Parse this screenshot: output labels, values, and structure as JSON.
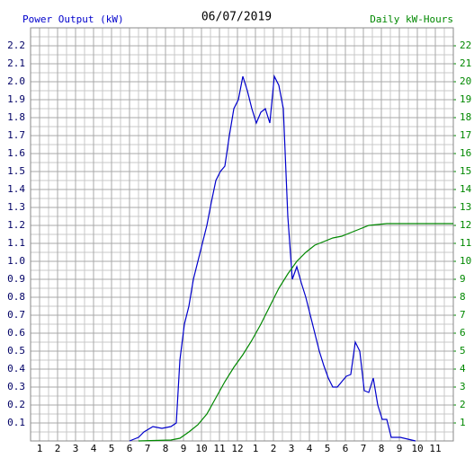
{
  "chart_data": {
    "type": "line",
    "title": "06/07/2019",
    "ylabel": "Power Output (kW)",
    "y2label": "Daily kW-Hours",
    "xlim": [
      0.5,
      24
    ],
    "xticks": [
      1,
      2,
      3,
      4,
      5,
      6,
      7,
      8,
      9,
      10,
      11,
      12,
      {
        "value": 13,
        "label": "1"
      },
      {
        "value": 14,
        "label": "2"
      },
      {
        "value": 15,
        "label": "3"
      },
      {
        "value": 16,
        "label": "4"
      },
      {
        "value": 17,
        "label": "5"
      },
      {
        "value": 18,
        "label": "6"
      },
      {
        "value": 19,
        "label": "7"
      },
      {
        "value": 20,
        "label": "8"
      },
      {
        "value": 21,
        "label": "9"
      },
      {
        "value": 22,
        "label": "10"
      },
      {
        "value": 23,
        "label": "11"
      }
    ],
    "ylim": [
      0,
      2.3
    ],
    "yticks": [
      0.1,
      0.2,
      0.3,
      0.4,
      0.5,
      0.6,
      0.7,
      0.8,
      0.9,
      {
        "value": 1,
        "label": "1.0"
      },
      1.1,
      1.2,
      1.3,
      1.4,
      1.5,
      1.6,
      1.7,
      1.8,
      1.9,
      {
        "value": 2,
        "label": "2.0"
      },
      2.1,
      2.2
    ],
    "y2lim": [
      0,
      23
    ],
    "y2ticks": [
      1,
      2,
      3,
      4,
      5,
      6,
      7,
      8,
      9,
      10,
      11,
      12,
      13,
      14,
      15,
      16,
      17,
      18,
      19,
      20,
      21,
      22
    ],
    "grid": true,
    "series": [
      {
        "name": "Power Output (kW)",
        "color": "#0000cc",
        "x": [
          6.0,
          6.5,
          6.8,
          7.3,
          7.8,
          8.3,
          8.6,
          8.8,
          9.05,
          9.3,
          9.55,
          9.8,
          10.05,
          10.3,
          10.55,
          10.8,
          11.05,
          11.3,
          11.55,
          11.8,
          12.05,
          12.3,
          12.55,
          12.8,
          13.05,
          13.3,
          13.55,
          13.8,
          14.05,
          14.3,
          14.55,
          14.8,
          15.05,
          15.3,
          15.55,
          15.8,
          16.05,
          16.3,
          16.55,
          16.8,
          17.05,
          17.3,
          17.55,
          17.8,
          18.05,
          18.3,
          18.55,
          18.8,
          19.05,
          19.3,
          19.55,
          19.8,
          20.05,
          20.3,
          20.55,
          21.05,
          21.9
        ],
        "values": [
          0,
          0.02,
          0.05,
          0.08,
          0.07,
          0.08,
          0.1,
          0.45,
          0.65,
          0.75,
          0.9,
          1.0,
          1.1,
          1.2,
          1.33,
          1.45,
          1.5,
          1.53,
          1.7,
          1.85,
          1.9,
          2.03,
          1.95,
          1.85,
          1.77,
          1.83,
          1.85,
          1.77,
          2.03,
          1.98,
          1.85,
          1.25,
          0.9,
          0.97,
          0.88,
          0.8,
          0.7,
          0.6,
          0.5,
          0.42,
          0.35,
          0.3,
          0.3,
          0.33,
          0.36,
          0.37,
          0.55,
          0.5,
          0.28,
          0.27,
          0.35,
          0.2,
          0.12,
          0.12,
          0.02,
          0.02,
          0
        ]
      },
      {
        "name": "Daily kW-Hours",
        "color": "#008800",
        "axis": "y2",
        "x": [
          6.5,
          8.3,
          8.8,
          9.3,
          9.8,
          10.3,
          10.8,
          11.3,
          11.8,
          12.3,
          12.8,
          13.3,
          13.8,
          14.3,
          14.8,
          15.3,
          15.8,
          16.3,
          16.8,
          17.3,
          17.8,
          18.3,
          18.8,
          19.3,
          19.8,
          20.3,
          24
        ],
        "values": [
          0,
          0.05,
          0.15,
          0.5,
          0.9,
          1.5,
          2.4,
          3.3,
          4.1,
          4.8,
          5.6,
          6.5,
          7.5,
          8.5,
          9.3,
          10.0,
          10.5,
          10.9,
          11.1,
          11.3,
          11.4,
          11.6,
          11.8,
          12.0,
          12.05,
          12.1,
          12.1
        ]
      }
    ]
  }
}
